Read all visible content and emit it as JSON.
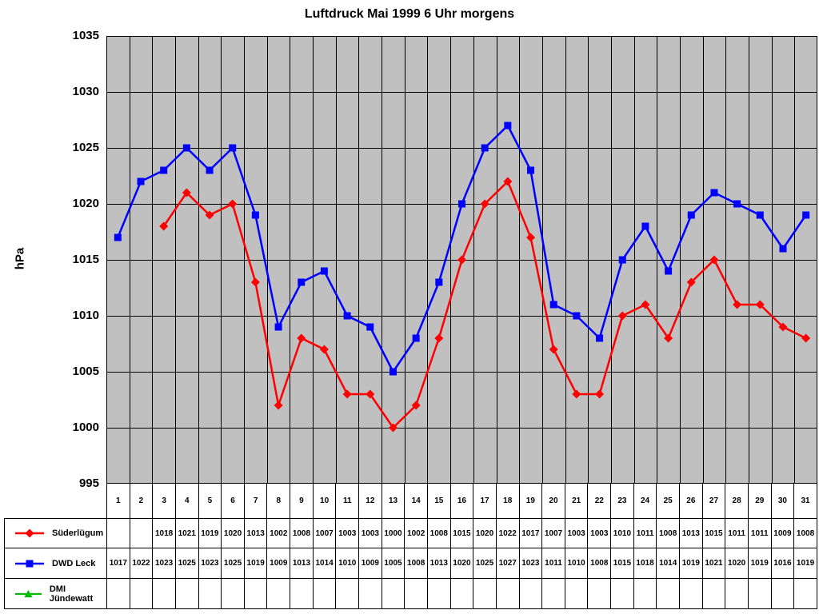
{
  "chart_data": {
    "type": "line",
    "title": "Luftdruck Mai 1999 6 Uhr morgens",
    "ylabel": "hPa",
    "ylim": [
      995,
      1035
    ],
    "ytick_step": 5,
    "grid": true,
    "plot_bg": "#C0C0C0",
    "gridline_color": "#000000",
    "legend_position": "data-table-left",
    "categories": [
      1,
      2,
      3,
      4,
      5,
      6,
      7,
      8,
      9,
      10,
      11,
      12,
      13,
      14,
      15,
      16,
      17,
      18,
      19,
      20,
      21,
      22,
      23,
      24,
      25,
      26,
      27,
      28,
      29,
      30,
      31
    ],
    "series": [
      {
        "name": "Süderlügum",
        "color": "#FF0000",
        "marker": "diamond",
        "values": [
          null,
          null,
          1018,
          1021,
          1019,
          1020,
          1013,
          1002,
          1008,
          1007,
          1003,
          1003,
          1000,
          1002,
          1008,
          1015,
          1020,
          1022,
          1017,
          1007,
          1003,
          1003,
          1010,
          1011,
          1008,
          1013,
          1015,
          1011,
          1011,
          1009,
          1008
        ]
      },
      {
        "name": "DWD Leck",
        "color": "#0000FF",
        "marker": "square",
        "values": [
          1017,
          1022,
          1023,
          1025,
          1023,
          1025,
          1019,
          1009,
          1013,
          1014,
          1010,
          1009,
          1005,
          1008,
          1013,
          1020,
          1025,
          1027,
          1023,
          1011,
          1010,
          1008,
          1015,
          1018,
          1014,
          1019,
          1021,
          1020,
          1019,
          1016,
          1019
        ]
      },
      {
        "name": "DMI Jündewatt",
        "color": "#00BB00",
        "marker": "triangle",
        "values": [
          null,
          null,
          null,
          null,
          null,
          null,
          null,
          null,
          null,
          null,
          null,
          null,
          null,
          null,
          null,
          null,
          null,
          null,
          null,
          null,
          null,
          null,
          null,
          null,
          null,
          null,
          null,
          null,
          null,
          null,
          null
        ]
      }
    ]
  }
}
